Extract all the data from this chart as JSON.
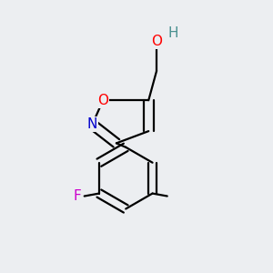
{
  "background_color": "#eceef1",
  "bond_color": "#000000",
  "bond_width": 1.6,
  "figsize": [
    3.0,
    3.0
  ],
  "dpi": 100,
  "colors": {
    "O": "#ff0000",
    "N": "#0000cc",
    "F": "#cc00cc",
    "H": "#4a9090",
    "C": "#000000"
  }
}
